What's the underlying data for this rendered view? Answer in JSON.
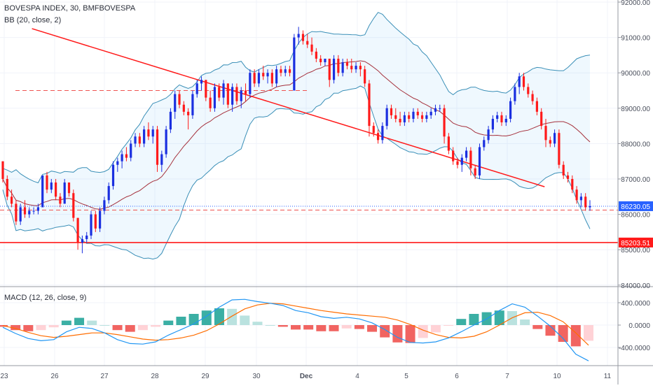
{
  "chart_data": [
    {
      "type": "candlestick",
      "title": "BOVESPA INDEX, 30, BMFBOVESPA",
      "indicator_label": "BB (20, close, 2)",
      "ylim": [
        84000,
        92000
      ],
      "y_ticks": [
        84000,
        85000,
        86000,
        87000,
        88000,
        89000,
        90000,
        91000,
        92000
      ],
      "y_tick_labels": [
        "84000.00",
        "85000.00",
        "86000.00",
        "87000.00",
        "88000.00",
        "89000.00",
        "90000.00",
        "91000.00",
        "92000.00"
      ],
      "x_tick_labels": [
        "23",
        "26",
        "27",
        "28",
        "29",
        "30",
        "Dec",
        "4",
        "5",
        "6",
        "7",
        "10",
        "11"
      ],
      "price_tags": [
        {
          "value": 86230.05,
          "label": "86230.05",
          "color": "#2962ff"
        },
        {
          "value": 85203.51,
          "label": "85203.51",
          "color": "#ff1a1a"
        }
      ],
      "horizontal_lines": [
        {
          "value": 85203.51,
          "style": "solid",
          "color": "#ff1a1a"
        },
        {
          "value": 86120,
          "style": "dashed",
          "color": "#ef5350"
        },
        {
          "value": 89500,
          "style": "dashed",
          "color": "#ef5350"
        },
        {
          "value": 86230.05,
          "style": "dotted",
          "color": "#2962ff"
        }
      ],
      "trendline": {
        "from_index": 0.55,
        "from_value": 91250,
        "to_index": 10.75,
        "to_value": 86780,
        "color": "#ff1a1a"
      },
      "candle_colors": {
        "up": "#1a2fe0",
        "down": "#ff1a1a"
      },
      "candles": [
        [
          87500,
          87500,
          86900,
          87000
        ],
        [
          87000,
          87100,
          86400,
          86500
        ],
        [
          86500,
          86700,
          86200,
          86300
        ],
        [
          86300,
          86400,
          85700,
          85800
        ],
        [
          85800,
          86300,
          85700,
          86200
        ],
        [
          86200,
          86400,
          85900,
          86000
        ],
        [
          86000,
          86200,
          85900,
          86100
        ],
        [
          86100,
          86200,
          86000,
          86100
        ],
        [
          86100,
          86300,
          86000,
          86200
        ],
        [
          86200,
          87100,
          86200,
          87100
        ],
        [
          87100,
          87200,
          86600,
          86700
        ],
        [
          86700,
          87000,
          86600,
          86900
        ],
        [
          86900,
          87000,
          86400,
          86500
        ],
        [
          86500,
          86600,
          86200,
          86300
        ],
        [
          86300,
          87000,
          86300,
          86900
        ],
        [
          86900,
          86900,
          86500,
          86600
        ],
        [
          86600,
          86700,
          85800,
          85900
        ],
        [
          85900,
          85900,
          85000,
          85200
        ],
        [
          85200,
          85400,
          84900,
          85300
        ],
        [
          85300,
          85500,
          85200,
          85400
        ],
        [
          85400,
          86100,
          85300,
          86000
        ],
        [
          86000,
          86100,
          85500,
          85600
        ],
        [
          85600,
          86200,
          85500,
          86100
        ],
        [
          86100,
          86500,
          86000,
          86400
        ],
        [
          86400,
          86900,
          86300,
          86800
        ],
        [
          86800,
          87500,
          86700,
          87400
        ],
        [
          87400,
          87600,
          87200,
          87500
        ],
        [
          87500,
          87800,
          87300,
          87700
        ],
        [
          87700,
          87900,
          87500,
          87600
        ],
        [
          87600,
          88100,
          87500,
          88000
        ],
        [
          88000,
          88300,
          87900,
          88200
        ],
        [
          88200,
          88300,
          87900,
          88000
        ],
        [
          88000,
          88500,
          87900,
          88400
        ],
        [
          88400,
          88600,
          88100,
          88200
        ],
        [
          88200,
          88500,
          88000,
          88400
        ],
        [
          88400,
          88500,
          87200,
          87400
        ],
        [
          87400,
          87800,
          87200,
          87700
        ],
        [
          87700,
          88500,
          87600,
          88400
        ],
        [
          88400,
          89000,
          88300,
          88900
        ],
        [
          88900,
          89500,
          88700,
          89400
        ],
        [
          89400,
          89500,
          89000,
          89100
        ],
        [
          89100,
          89200,
          88800,
          88900
        ],
        [
          88900,
          89000,
          88400,
          88800
        ],
        [
          88800,
          89500,
          88700,
          89400
        ],
        [
          89400,
          89800,
          89300,
          89700
        ],
        [
          89700,
          89900,
          89500,
          89800
        ],
        [
          89800,
          89800,
          89200,
          89300
        ],
        [
          89300,
          89500,
          88900,
          89000
        ],
        [
          89000,
          89700,
          88900,
          89600
        ],
        [
          89600,
          89700,
          89200,
          89300
        ],
        [
          89300,
          89800,
          89100,
          89700
        ],
        [
          89700,
          89700,
          89000,
          89100
        ],
        [
          89100,
          89700,
          88900,
          89600
        ],
        [
          89600,
          89700,
          89100,
          89200
        ],
        [
          89200,
          89600,
          89000,
          89500
        ],
        [
          89500,
          89700,
          89200,
          89400
        ],
        [
          89400,
          90100,
          89300,
          90000
        ],
        [
          90000,
          90100,
          89600,
          89700
        ],
        [
          89700,
          90100,
          89600,
          90000
        ],
        [
          90000,
          90200,
          89800,
          89900
        ],
        [
          89900,
          90100,
          89700,
          90000
        ],
        [
          90000,
          90100,
          89600,
          89700
        ],
        [
          89700,
          90200,
          89600,
          90100
        ],
        [
          90100,
          90200,
          89900,
          90000
        ],
        [
          90000,
          90200,
          89900,
          90100
        ],
        [
          90100,
          90200,
          89900,
          90000
        ],
        [
          89500,
          91100,
          89500,
          91000
        ],
        [
          91000,
          91300,
          90800,
          91100
        ],
        [
          91100,
          91200,
          90800,
          90900
        ],
        [
          90900,
          91100,
          90700,
          90800
        ],
        [
          90800,
          91000,
          90500,
          90600
        ],
        [
          90600,
          90700,
          90300,
          90400
        ],
        [
          90400,
          90500,
          90200,
          90300
        ],
        [
          90300,
          90400,
          90200,
          90400
        ],
        [
          90400,
          90400,
          89600,
          89800
        ],
        [
          89800,
          90500,
          89700,
          90400
        ],
        [
          90400,
          90500,
          89900,
          90000
        ],
        [
          90000,
          90400,
          89900,
          90300
        ],
        [
          90300,
          90400,
          90100,
          90200
        ],
        [
          90200,
          90400,
          90000,
          90100
        ],
        [
          90100,
          90300,
          90000,
          90200
        ],
        [
          90200,
          90300,
          89900,
          90100
        ],
        [
          90100,
          90200,
          89600,
          89700
        ],
        [
          89700,
          89800,
          88200,
          88500
        ],
        [
          88500,
          88600,
          88200,
          88300
        ],
        [
          88300,
          88400,
          88000,
          88100
        ],
        [
          88100,
          88600,
          88000,
          88500
        ],
        [
          88500,
          89100,
          88400,
          89000
        ],
        [
          89000,
          89100,
          88700,
          88800
        ],
        [
          88800,
          89000,
          88600,
          88700
        ],
        [
          88700,
          88900,
          88500,
          88600
        ],
        [
          88600,
          88900,
          88500,
          88800
        ],
        [
          88800,
          88900,
          88600,
          88700
        ],
        [
          88700,
          89000,
          88600,
          88900
        ],
        [
          88900,
          89000,
          88700,
          88800
        ],
        [
          88800,
          88900,
          88600,
          88700
        ],
        [
          88700,
          88900,
          88600,
          88800
        ],
        [
          88800,
          89000,
          88700,
          88900
        ],
        [
          88900,
          89100,
          88800,
          89000
        ],
        [
          89000,
          89100,
          88900,
          89000
        ],
        [
          89000,
          89100,
          88000,
          88200
        ],
        [
          88200,
          88300,
          87700,
          87800
        ],
        [
          87800,
          87900,
          87400,
          87500
        ],
        [
          87500,
          87600,
          87300,
          87400
        ],
        [
          87400,
          87700,
          87200,
          87600
        ],
        [
          87600,
          87900,
          87500,
          87800
        ],
        [
          87800,
          87900,
          87100,
          87300
        ],
        [
          87300,
          87400,
          87000,
          87100
        ],
        [
          87100,
          88000,
          87000,
          87900
        ],
        [
          87900,
          88200,
          87800,
          88100
        ],
        [
          88100,
          88500,
          88000,
          88400
        ],
        [
          88400,
          88800,
          88300,
          88700
        ],
        [
          88700,
          88900,
          88600,
          88800
        ],
        [
          88800,
          88900,
          88500,
          88600
        ],
        [
          88600,
          88800,
          88500,
          88700
        ],
        [
          88700,
          89300,
          88600,
          89200
        ],
        [
          89200,
          89700,
          89100,
          89600
        ],
        [
          89600,
          90000,
          89400,
          89900
        ],
        [
          89900,
          90000,
          89500,
          89600
        ],
        [
          89600,
          89700,
          89300,
          89400
        ],
        [
          89400,
          89500,
          89100,
          89200
        ],
        [
          89200,
          89300,
          88800,
          88900
        ],
        [
          88900,
          89000,
          88400,
          88500
        ],
        [
          88500,
          88700,
          87900,
          88100
        ],
        [
          88100,
          88200,
          87900,
          88000
        ],
        [
          88000,
          88400,
          87900,
          88300
        ],
        [
          88300,
          88400,
          87300,
          87400
        ],
        [
          87400,
          87500,
          87000,
          87100
        ],
        [
          87100,
          87200,
          86900,
          87000
        ],
        [
          87000,
          87100,
          86600,
          86700
        ],
        [
          86700,
          86800,
          86300,
          86400
        ],
        [
          86400,
          86600,
          86200,
          86500
        ],
        [
          86500,
          86600,
          86100,
          86200
        ],
        [
          86200,
          86400,
          86100,
          86230.05
        ]
      ]
    },
    {
      "type": "line",
      "title": "MACD (12, 26, close, 9)",
      "ylim": [
        -850,
        850
      ],
      "y_ticks": [
        -400,
        0,
        400
      ],
      "y_tick_labels": [
        "-400.0000",
        "0.0000",
        "400.0000"
      ],
      "series": [
        {
          "name": "MACD",
          "color": "#2196f3",
          "values": [
            -40,
            -150,
            -240,
            -280,
            -260,
            -120,
            -40,
            -60,
            -140,
            -260,
            -330,
            -340,
            -300,
            -180,
            -80,
            20,
            160,
            320,
            450,
            460,
            420,
            390,
            350,
            260,
            220,
            150,
            120,
            140,
            110,
            40,
            -80,
            -220,
            -310,
            -320,
            -300,
            -230,
            -120,
            0,
            110,
            260,
            380,
            320,
            160,
            -20,
            -240,
            -520,
            -640
          ]
        },
        {
          "name": "Signal",
          "color": "#ff6d00",
          "values": [
            -10,
            -60,
            -130,
            -190,
            -220,
            -200,
            -170,
            -140,
            -140,
            -170,
            -210,
            -250,
            -270,
            -260,
            -230,
            -180,
            -100,
            20,
            160,
            290,
            360,
            390,
            380,
            340,
            300,
            260,
            230,
            200,
            180,
            160,
            140,
            90,
            10,
            -90,
            -170,
            -220,
            -230,
            -200,
            -120,
            0,
            130,
            220,
            230,
            170,
            60,
            -140,
            -360
          ]
        }
      ],
      "histogram_colors": {
        "up_strong": "#26a69a",
        "up_weak": "#b2dfdb",
        "down_strong": "#ef5350",
        "down_weak": "#ffcdd2"
      }
    }
  ]
}
